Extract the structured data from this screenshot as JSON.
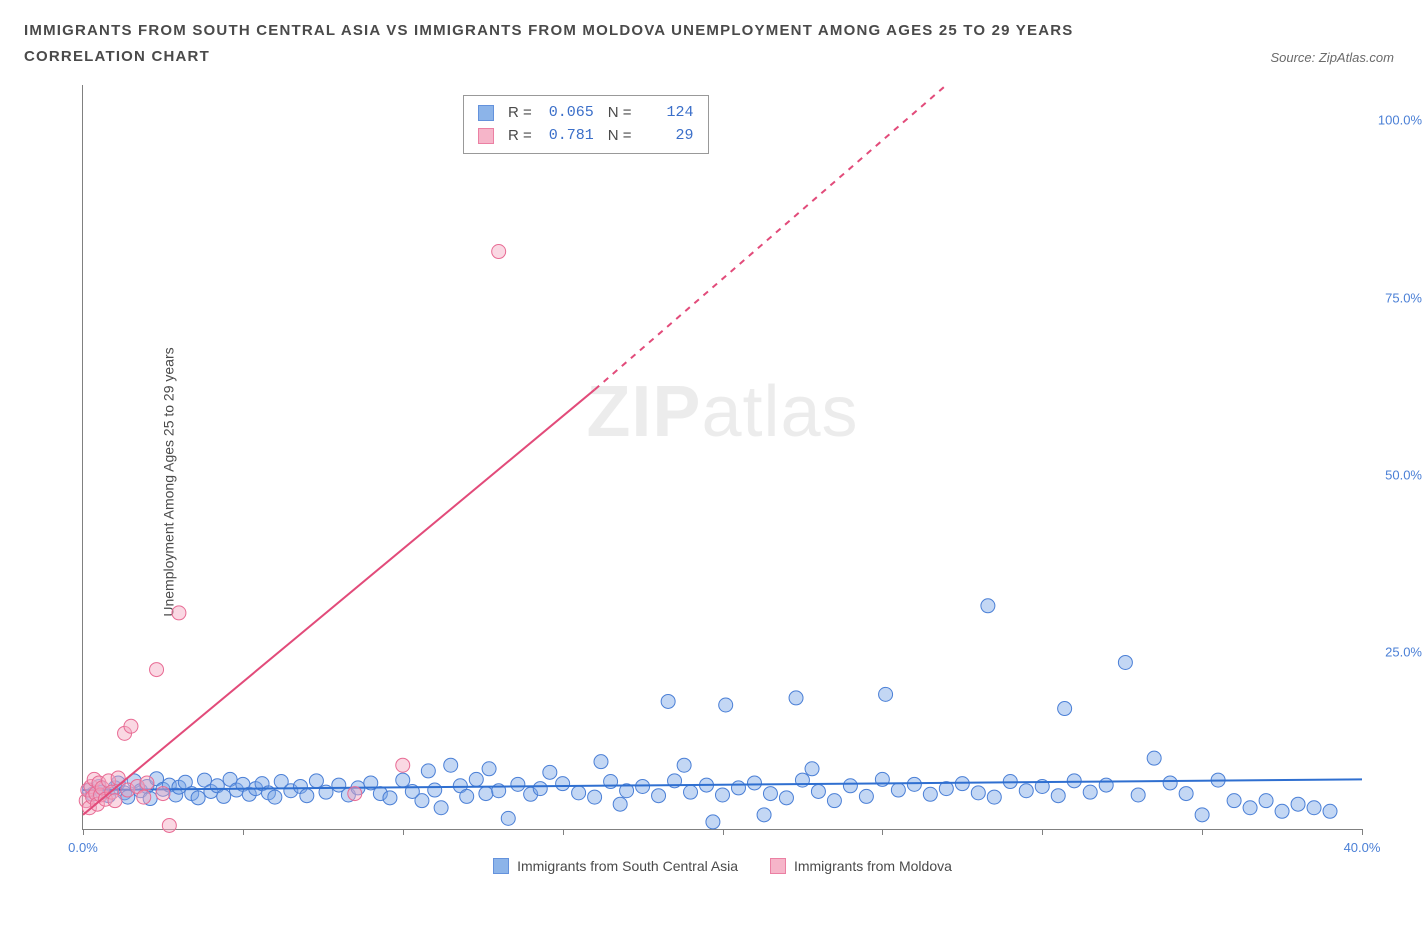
{
  "title_line1": "IMMIGRANTS FROM SOUTH CENTRAL ASIA VS IMMIGRANTS FROM MOLDOVA UNEMPLOYMENT AMONG AGES 25 TO 29 YEARS",
  "title_line2": "CORRELATION CHART",
  "source_prefix": "Source: ",
  "source_name": "ZipAtlas.com",
  "y_axis_label": "Unemployment Among Ages 25 to 29 years",
  "watermark_a": "ZIP",
  "watermark_b": "atlas",
  "chart": {
    "type": "scatter",
    "background_color": "#ffffff",
    "axis_color": "#808080",
    "tick_label_color": "#4a7fd6",
    "xlim": [
      0,
      40
    ],
    "ylim": [
      0,
      105
    ],
    "x_ticks": [
      0,
      5,
      10,
      15,
      20,
      25,
      30,
      35,
      40
    ],
    "x_tick_labels": [
      "0.0%",
      "",
      "",
      "",
      "",
      "",
      "",
      "",
      "40.0%"
    ],
    "y_ticks_right": [
      25,
      50,
      75,
      100
    ],
    "y_tick_labels": [
      "25.0%",
      "50.0%",
      "75.0%",
      "100.0%"
    ],
    "series": [
      {
        "name": "Immigrants from South Central Asia",
        "marker_color": "#79a7e6",
        "marker_fill_opacity": 0.45,
        "marker_stroke": "#4a7fd6",
        "marker_radius": 7,
        "fit_line_color": "#2f6fd0",
        "fit_line_width": 2,
        "fit_line_dashed": false,
        "fit_start": [
          0,
          5.5
        ],
        "fit_end": [
          40,
          7.0
        ],
        "R": "0.065",
        "N": "124",
        "points": [
          [
            0.2,
            5.5
          ],
          [
            0.3,
            4.9
          ],
          [
            0.5,
            6.0
          ],
          [
            0.6,
            5.2
          ],
          [
            0.8,
            4.7
          ],
          [
            1.0,
            5.8
          ],
          [
            1.1,
            6.5
          ],
          [
            1.3,
            5.1
          ],
          [
            1.4,
            4.5
          ],
          [
            1.6,
            6.8
          ],
          [
            1.8,
            5.4
          ],
          [
            2.0,
            6.0
          ],
          [
            2.1,
            4.3
          ],
          [
            2.3,
            7.1
          ],
          [
            2.5,
            5.6
          ],
          [
            2.7,
            6.2
          ],
          [
            2.9,
            4.8
          ],
          [
            3.0,
            5.9
          ],
          [
            3.2,
            6.6
          ],
          [
            3.4,
            5.0
          ],
          [
            3.6,
            4.4
          ],
          [
            3.8,
            6.9
          ],
          [
            4.0,
            5.3
          ],
          [
            4.2,
            6.1
          ],
          [
            4.4,
            4.6
          ],
          [
            4.6,
            7.0
          ],
          [
            4.8,
            5.5
          ],
          [
            5.0,
            6.3
          ],
          [
            5.2,
            4.9
          ],
          [
            5.4,
            5.7
          ],
          [
            5.6,
            6.4
          ],
          [
            5.8,
            5.1
          ],
          [
            6.0,
            4.5
          ],
          [
            6.2,
            6.7
          ],
          [
            6.5,
            5.4
          ],
          [
            6.8,
            6.0
          ],
          [
            7.0,
            4.7
          ],
          [
            7.3,
            6.8
          ],
          [
            7.6,
            5.2
          ],
          [
            8.0,
            6.2
          ],
          [
            8.3,
            4.8
          ],
          [
            8.6,
            5.8
          ],
          [
            9.0,
            6.5
          ],
          [
            9.3,
            5.0
          ],
          [
            9.6,
            4.4
          ],
          [
            10.0,
            6.9
          ],
          [
            10.3,
            5.3
          ],
          [
            10.6,
            4.0
          ],
          [
            10.8,
            8.2
          ],
          [
            11.0,
            5.5
          ],
          [
            11.2,
            3.0
          ],
          [
            11.5,
            9.0
          ],
          [
            11.8,
            6.1
          ],
          [
            12.0,
            4.6
          ],
          [
            12.3,
            7.0
          ],
          [
            12.6,
            5.0
          ],
          [
            12.7,
            8.5
          ],
          [
            13.0,
            5.4
          ],
          [
            13.3,
            1.5
          ],
          [
            13.6,
            6.3
          ],
          [
            14.0,
            4.9
          ],
          [
            14.3,
            5.7
          ],
          [
            14.6,
            8.0
          ],
          [
            15.0,
            6.4
          ],
          [
            15.5,
            5.1
          ],
          [
            16.0,
            4.5
          ],
          [
            16.2,
            9.5
          ],
          [
            16.5,
            6.7
          ],
          [
            16.8,
            3.5
          ],
          [
            17.0,
            5.4
          ],
          [
            17.5,
            6.0
          ],
          [
            18.0,
            4.7
          ],
          [
            18.3,
            18.0
          ],
          [
            18.5,
            6.8
          ],
          [
            18.8,
            9.0
          ],
          [
            19.0,
            5.2
          ],
          [
            19.5,
            6.2
          ],
          [
            19.7,
            1.0
          ],
          [
            20.0,
            4.8
          ],
          [
            20.1,
            17.5
          ],
          [
            20.5,
            5.8
          ],
          [
            21.0,
            6.5
          ],
          [
            21.3,
            2.0
          ],
          [
            21.5,
            5.0
          ],
          [
            22.0,
            4.4
          ],
          [
            22.3,
            18.5
          ],
          [
            22.5,
            6.9
          ],
          [
            22.8,
            8.5
          ],
          [
            23.0,
            5.3
          ],
          [
            23.5,
            4.0
          ],
          [
            24.0,
            6.1
          ],
          [
            24.5,
            4.6
          ],
          [
            25.0,
            7.0
          ],
          [
            25.1,
            19.0
          ],
          [
            25.5,
            5.5
          ],
          [
            26.0,
            6.3
          ],
          [
            26.5,
            4.9
          ],
          [
            27.0,
            5.7
          ],
          [
            27.5,
            6.4
          ],
          [
            28.0,
            5.1
          ],
          [
            28.3,
            31.5
          ],
          [
            28.5,
            4.5
          ],
          [
            29.0,
            6.7
          ],
          [
            29.5,
            5.4
          ],
          [
            30.0,
            6.0
          ],
          [
            30.5,
            4.7
          ],
          [
            30.7,
            17.0
          ],
          [
            31.0,
            6.8
          ],
          [
            31.5,
            5.2
          ],
          [
            32.0,
            6.2
          ],
          [
            32.6,
            23.5
          ],
          [
            33.0,
            4.8
          ],
          [
            33.5,
            10.0
          ],
          [
            34.0,
            6.5
          ],
          [
            34.5,
            5.0
          ],
          [
            35.0,
            2.0
          ],
          [
            35.5,
            6.9
          ],
          [
            36.0,
            4.0
          ],
          [
            36.5,
            3.0
          ],
          [
            37.0,
            4.0
          ],
          [
            37.5,
            2.5
          ],
          [
            38.0,
            3.5
          ],
          [
            38.5,
            3.0
          ],
          [
            39.0,
            2.5
          ]
        ]
      },
      {
        "name": "Immigrants from Moldova",
        "marker_color": "#f5a9c0",
        "marker_fill_opacity": 0.45,
        "marker_stroke": "#e86b94",
        "marker_radius": 7,
        "fit_line_color": "#e24b7a",
        "fit_line_width": 2,
        "fit_line_dashed": true,
        "fit_dash_switch": [
          16,
          62
        ],
        "fit_start": [
          0,
          2
        ],
        "fit_end": [
          27,
          105
        ],
        "R": "0.781",
        "N": "29",
        "points": [
          [
            0.1,
            4.0
          ],
          [
            0.15,
            5.5
          ],
          [
            0.2,
            3.0
          ],
          [
            0.25,
            6.0
          ],
          [
            0.3,
            4.5
          ],
          [
            0.35,
            7.0
          ],
          [
            0.4,
            5.0
          ],
          [
            0.45,
            3.5
          ],
          [
            0.5,
            6.5
          ],
          [
            0.55,
            4.8
          ],
          [
            0.6,
            5.8
          ],
          [
            0.7,
            4.2
          ],
          [
            0.8,
            6.8
          ],
          [
            0.9,
            5.2
          ],
          [
            1.0,
            4.0
          ],
          [
            1.1,
            7.2
          ],
          [
            1.3,
            13.5
          ],
          [
            1.4,
            5.5
          ],
          [
            1.5,
            14.5
          ],
          [
            1.7,
            6.0
          ],
          [
            1.9,
            4.5
          ],
          [
            2.0,
            6.5
          ],
          [
            2.3,
            22.5
          ],
          [
            2.5,
            5.0
          ],
          [
            2.7,
            0.5
          ],
          [
            3.0,
            30.5
          ],
          [
            8.5,
            5.0
          ],
          [
            10.0,
            9.0
          ],
          [
            13.0,
            81.5
          ]
        ]
      }
    ],
    "legend_top": {
      "border_color": "#999999",
      "label_R": "R =",
      "label_N": "N ="
    }
  }
}
